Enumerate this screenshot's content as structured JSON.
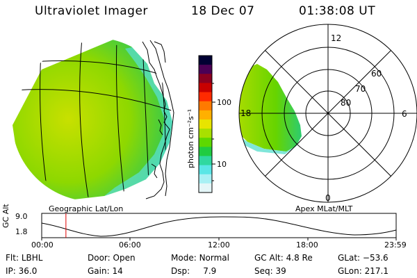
{
  "header": {
    "instrument": "Ultraviolet Imager",
    "date": "18 Dec 07",
    "time": "01:38:08 UT"
  },
  "colorbar": {
    "unit_label": "photon cm⁻²s⁻¹",
    "ticks": [
      "100",
      "10"
    ],
    "colors": [
      "#000033",
      "#4b0055",
      "#8b0020",
      "#c80000",
      "#ff2a00",
      "#ff7a00",
      "#ffb000",
      "#e8e400",
      "#a8e000",
      "#5ed800",
      "#20cc40",
      "#30d8a0",
      "#5ae6e6",
      "#a8f0f4",
      "#e4f6f8"
    ]
  },
  "geo_panel": {
    "caption": "Geographic Lat/Lon"
  },
  "polar_panel": {
    "caption": "Apex MLat/MLT",
    "mlt_labels": [
      "12",
      "6",
      "0",
      "18"
    ],
    "lat_labels": [
      "60",
      "70",
      "80"
    ]
  },
  "orbit_plot": {
    "ylabel": "GC Alt",
    "y_ticks": [
      "9.0",
      "1.8"
    ],
    "x_ticks": [
      "00:00",
      "06:00",
      "12:00",
      "18:00",
      "23:59"
    ],
    "current_time_hours": 1.64
  },
  "status": {
    "flt": {
      "label": "Flt:",
      "value": "LBHL"
    },
    "ip": {
      "label": "IP:",
      "value": "36.0"
    },
    "door": {
      "label": "Door:",
      "value": "Open"
    },
    "gain": {
      "label": "Gain:",
      "value": "14"
    },
    "mode": {
      "label": "Mode:",
      "value": "Normal"
    },
    "dsp": {
      "label": "Dsp:",
      "value": "7.9"
    },
    "gcalt": {
      "label": "GC Alt:",
      "value": "4.8 Re"
    },
    "seq": {
      "label": "Seq:",
      "value": "39"
    },
    "glat": {
      "label": "GLat:",
      "value": "−53.6"
    },
    "glon": {
      "label": "GLon:",
      "value": "217.1"
    }
  }
}
